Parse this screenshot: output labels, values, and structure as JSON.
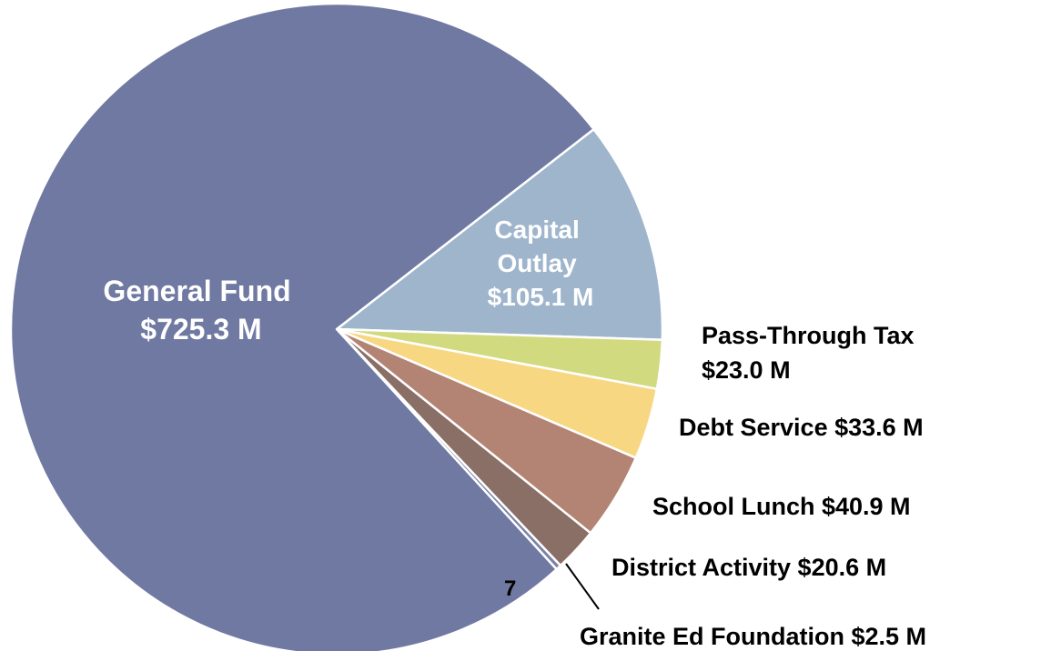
{
  "chart_data": {
    "type": "pie",
    "title": "",
    "slices": [
      {
        "name": "General Fund",
        "value_label": "$725.3 M",
        "value": 725.3,
        "color": "#6F79A2"
      },
      {
        "name": "Capital Outlay",
        "value_label": "$105.1 M",
        "value": 105.1,
        "color": "#9EB5CC"
      },
      {
        "name": "Pass-Through Tax",
        "value_label": "$23.0 M",
        "value": 23.0,
        "color": "#D2DA80"
      },
      {
        "name": "Debt Service",
        "value_label": "$33.6 M",
        "value": 33.6,
        "color": "#F7D781"
      },
      {
        "name": "School Lunch",
        "value_label": "$40.9 M",
        "value": 40.9,
        "color": "#B38473"
      },
      {
        "name": "District Activity",
        "value_label": "$20.6 M",
        "value": 20.6,
        "color": "#8A6F66"
      },
      {
        "name": "Granite Ed Foundation",
        "value_label": "$2.5 M",
        "value": 2.5,
        "color": "#7A82A9"
      }
    ]
  },
  "labels": {
    "general_fund": [
      "General Fund",
      "$725.3 M"
    ],
    "capital_outlay": [
      "Capital",
      "Outlay",
      "$105.1 M"
    ],
    "pass_through": [
      "Pass-Through Tax",
      "$23.0 M"
    ],
    "debt_service": "Debt Service $33.6 M",
    "school_lunch": "School Lunch $40.9 M",
    "district_activity": "District Activity $20.6 M",
    "granite_ed": "Granite Ed Foundation $2.5 M"
  },
  "page_number": "7"
}
